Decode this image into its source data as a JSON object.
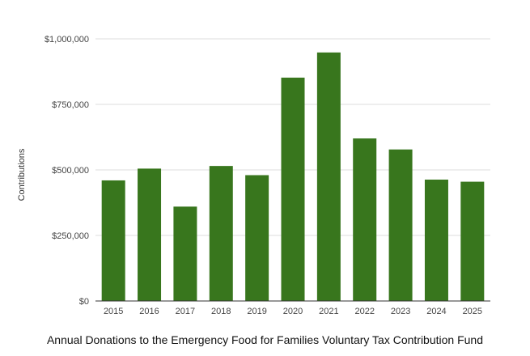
{
  "chart_data": {
    "type": "bar",
    "title": "Annual Donations to the Emergency Food for Families Voluntary Tax Contribution Fund",
    "xlabel": "",
    "ylabel": "Contributions",
    "categories": [
      "2015",
      "2016",
      "2017",
      "2018",
      "2019",
      "2020",
      "2021",
      "2022",
      "2023",
      "2024",
      "2025"
    ],
    "values": [
      460000,
      505000,
      360000,
      515000,
      480000,
      852000,
      948000,
      620000,
      578000,
      463000,
      455000
    ],
    "ylim": [
      0,
      1000000
    ],
    "yticks": [
      0,
      250000,
      500000,
      750000,
      1000000
    ],
    "ytick_labels": [
      "$0",
      "$250,000",
      "$500,000",
      "$750,000",
      "$1,000,000"
    ],
    "grid": true,
    "legend": "none",
    "bar_color": "#38761d",
    "grid_color": "#dddddd",
    "axis_color": "#333333"
  }
}
